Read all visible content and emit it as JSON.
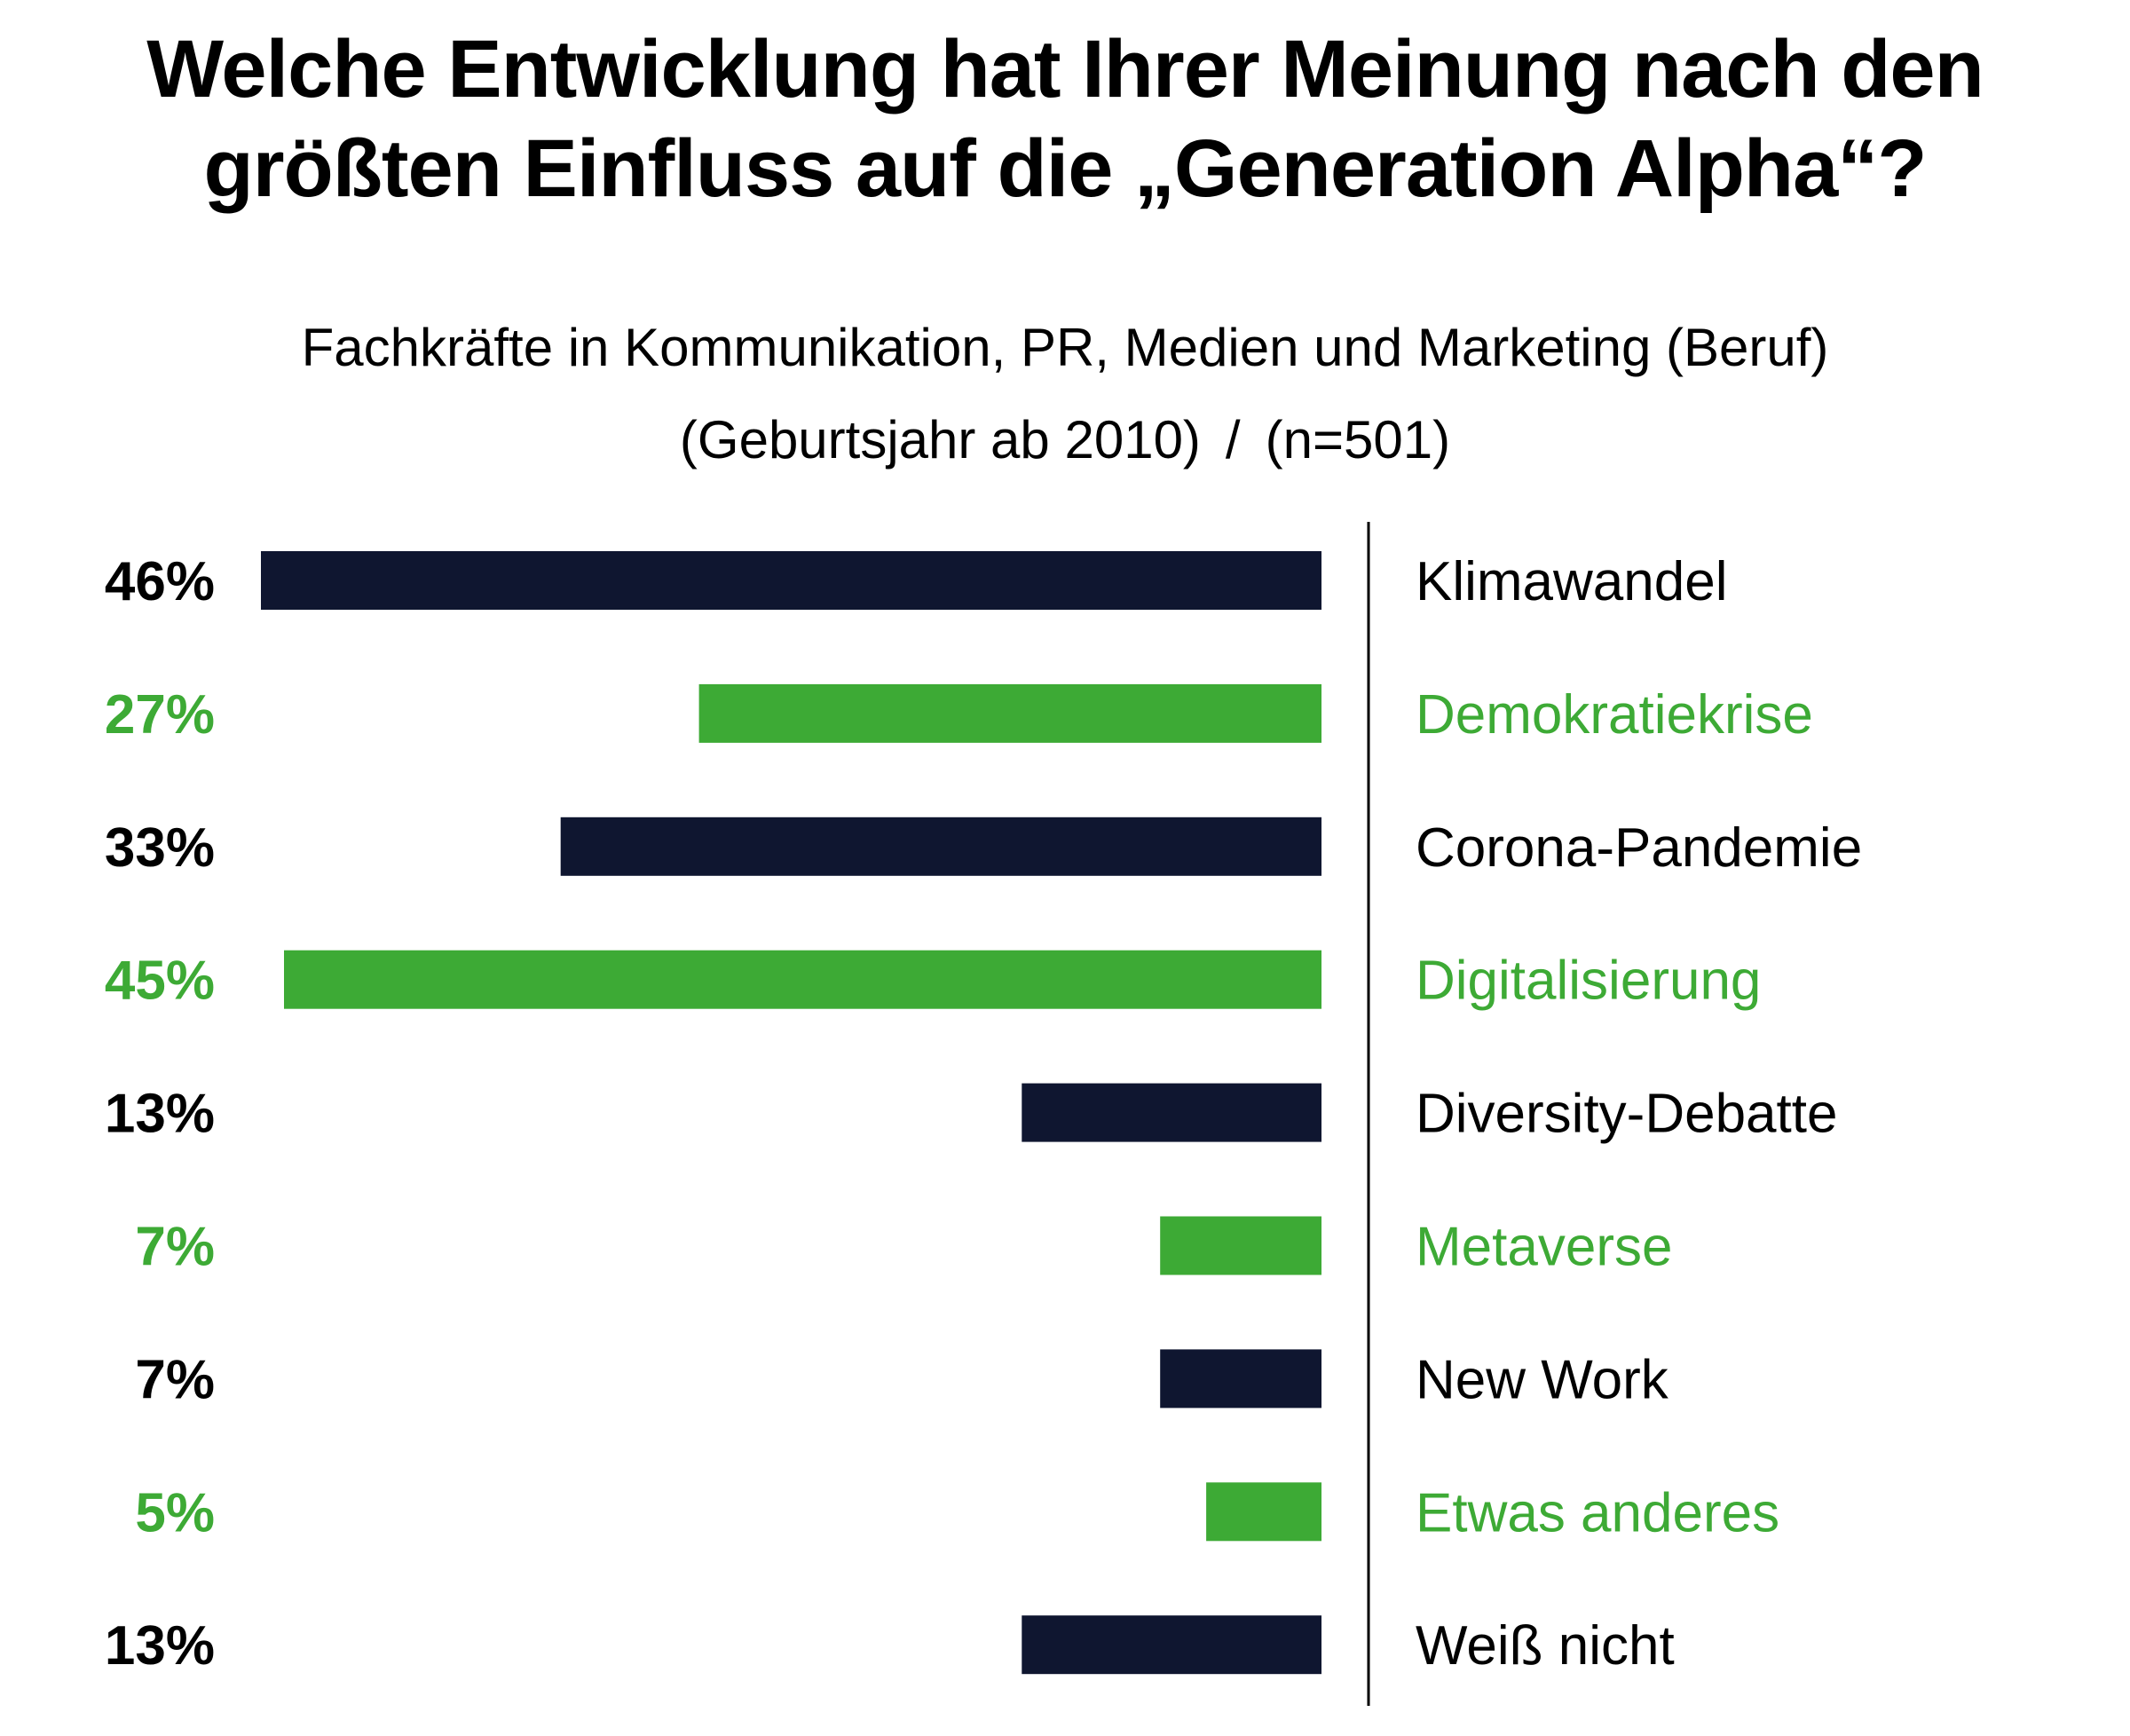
{
  "title": {
    "line1": "Welche Entwicklung hat Ihrer Meinung nach den",
    "line2": "größten Einfluss auf die „Generation Alpha“?"
  },
  "subtitle": {
    "line1": "Fachkräfte in Kommunikation, PR, Medien und Marketing (Beruf)",
    "line2_part1": "(Geburtsjahr ab 2010)",
    "line2_sep": "/",
    "line2_part2": "(n=501)"
  },
  "colors": {
    "dark": "#0f1630",
    "green": "#3daa35",
    "text_dark": "#000000"
  },
  "chart_data": {
    "type": "bar",
    "orientation": "horizontal",
    "title": "Welche Entwicklung hat Ihrer Meinung nach den größten Einfluss auf die „Generation Alpha“?",
    "subtitle": "Fachkräfte in Kommunikation, PR, Medien und Marketing (Beruf) (Geburtsjahr ab 2010) / (n=501)",
    "xlabel": "",
    "ylabel": "",
    "unit": "%",
    "xlim": [
      0,
      46
    ],
    "grid": false,
    "categories": [
      "Klimawandel",
      "Demokratiekrise",
      "Corona-Pandemie",
      "Digitalisierung",
      "Diversity-Debatte",
      "Metaverse",
      "New Work",
      "Etwas anderes",
      "Weiß nicht"
    ],
    "values": [
      46,
      27,
      33,
      45,
      13,
      7,
      7,
      5,
      13
    ],
    "labels": [
      "46%",
      "27%",
      "33%",
      "45%",
      "13%",
      "7%",
      "7%",
      "5%",
      "13%"
    ],
    "bar_colors": [
      "dark",
      "green",
      "dark",
      "green",
      "dark",
      "green",
      "dark",
      "green",
      "dark"
    ]
  }
}
